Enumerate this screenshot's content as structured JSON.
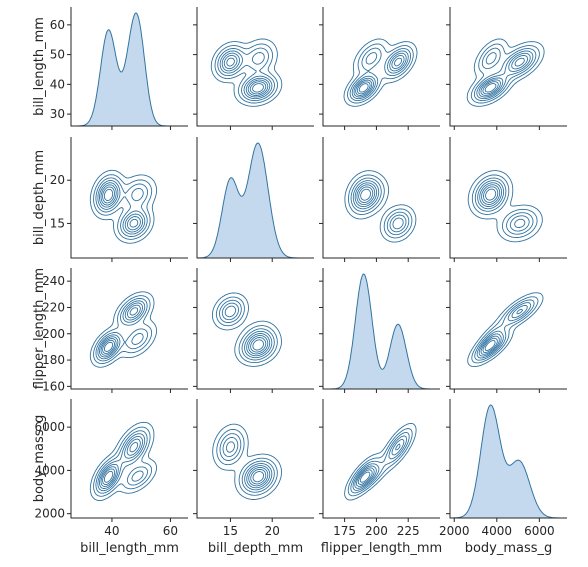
{
  "chart_data": {
    "type": "pairplot",
    "kind": "kde",
    "variables": [
      "bill_length_mm",
      "bill_depth_mm",
      "flipper_length_mm",
      "body_mass_g"
    ],
    "ranges": {
      "bill_length_mm": [
        26,
        66
      ],
      "bill_depth_mm": [
        11,
        25
      ],
      "flipper_length_mm": [
        158,
        250
      ],
      "body_mass_g": [
        1800,
        7300
      ]
    },
    "ticks": {
      "bill_length_mm": [
        40,
        60
      ],
      "bill_depth_mm": [
        15,
        20
      ],
      "flipper_length_mm": [
        175,
        200,
        225
      ],
      "body_mass_g": [
        2000,
        4000,
        6000
      ]
    },
    "ticks_y": {
      "bill_length_mm": [
        30,
        40,
        50,
        60
      ],
      "bill_depth_mm": [
        15,
        20
      ],
      "flipper_length_mm": [
        160,
        180,
        200,
        220,
        240
      ],
      "body_mass_g": [
        2000,
        4000,
        6000
      ]
    },
    "marginals": {
      "bill_length_mm": [
        {
          "mu": 38.8,
          "sd": 2.7,
          "w": 0.44
        },
        {
          "mu": 47.2,
          "sd": 2.8,
          "w": 0.36
        },
        {
          "mu": 49.5,
          "sd": 2.4,
          "w": 0.2
        }
      ],
      "bill_depth_mm": [
        {
          "mu": 15.0,
          "sd": 1.0,
          "w": 0.36
        },
        {
          "mu": 18.3,
          "sd": 1.2,
          "w": 0.64
        }
      ],
      "flipper_length_mm": [
        {
          "mu": 190,
          "sd": 6.5,
          "w": 0.64
        },
        {
          "mu": 217,
          "sd": 6.5,
          "w": 0.36
        }
      ],
      "body_mass_g": [
        {
          "mu": 3700,
          "sd": 450,
          "w": 0.64
        },
        {
          "mu": 5050,
          "sd": 500,
          "w": 0.36
        }
      ]
    },
    "clusters": [
      {
        "name": "",
        "w": 0.44,
        "mean": {
          "bill_length_mm": 38.8,
          "bill_depth_mm": 18.3,
          "flipper_length_mm": 190,
          "body_mass_g": 3700
        },
        "sd": {
          "bill_length_mm": 2.6,
          "bill_depth_mm": 1.2,
          "flipper_length_mm": 6.5,
          "body_mass_g": 460
        }
      },
      {
        "name": "",
        "w": 0.2,
        "mean": {
          "bill_length_mm": 48.8,
          "bill_depth_mm": 18.4,
          "flipper_length_mm": 196,
          "body_mass_g": 3730
        },
        "sd": {
          "bill_length_mm": 3.2,
          "bill_depth_mm": 1.1,
          "flipper_length_mm": 7.0,
          "body_mass_g": 390
        }
      },
      {
        "name": "",
        "w": 0.36,
        "mean": {
          "bill_length_mm": 47.5,
          "bill_depth_mm": 15.0,
          "flipper_length_mm": 217,
          "body_mass_g": 5080
        },
        "sd": {
          "bill_length_mm": 3.0,
          "bill_depth_mm": 1.0,
          "flipper_length_mm": 6.5,
          "body_mass_g": 500
        }
      }
    ],
    "colors": {
      "line": "#3274a1",
      "fill": "#c4d9ed",
      "text": "#262626"
    }
  }
}
